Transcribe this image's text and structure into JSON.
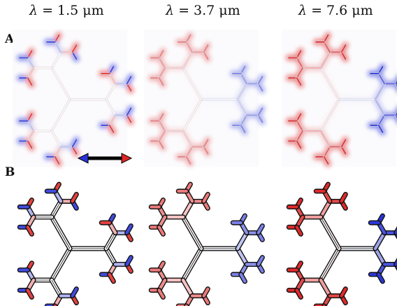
{
  "wavelengths": [
    {
      "symbol": "λ",
      "equals": " = ",
      "value": "1.5",
      "unit": " μm"
    },
    {
      "symbol": "λ",
      "equals": " = ",
      "value": "3.7",
      "unit": " μm"
    },
    {
      "symbol": "λ",
      "equals": " = ",
      "value": "7.6",
      "unit": " μm"
    }
  ],
  "row_labels": {
    "A": "A",
    "B": "B"
  },
  "colors": {
    "positive": "#dd1f1f",
    "negative": "#1f2bd6",
    "neutral": "#ffffff",
    "outline": "#111111"
  },
  "polarization_arrow": "double-headed arrow, blue (left) to red (right)",
  "panels": {
    "B_edge_charge": [
      {
        "trunk": 0.0,
        "upper": 0.0,
        "lower": 0.0,
        "right": 0.0
      },
      {
        "trunk": 0.0,
        "upper": 0.6,
        "lower": 0.6,
        "right": -0.6
      },
      {
        "trunk": 0.0,
        "upper": 0.95,
        "lower": 0.95,
        "right": -0.95
      }
    ]
  }
}
